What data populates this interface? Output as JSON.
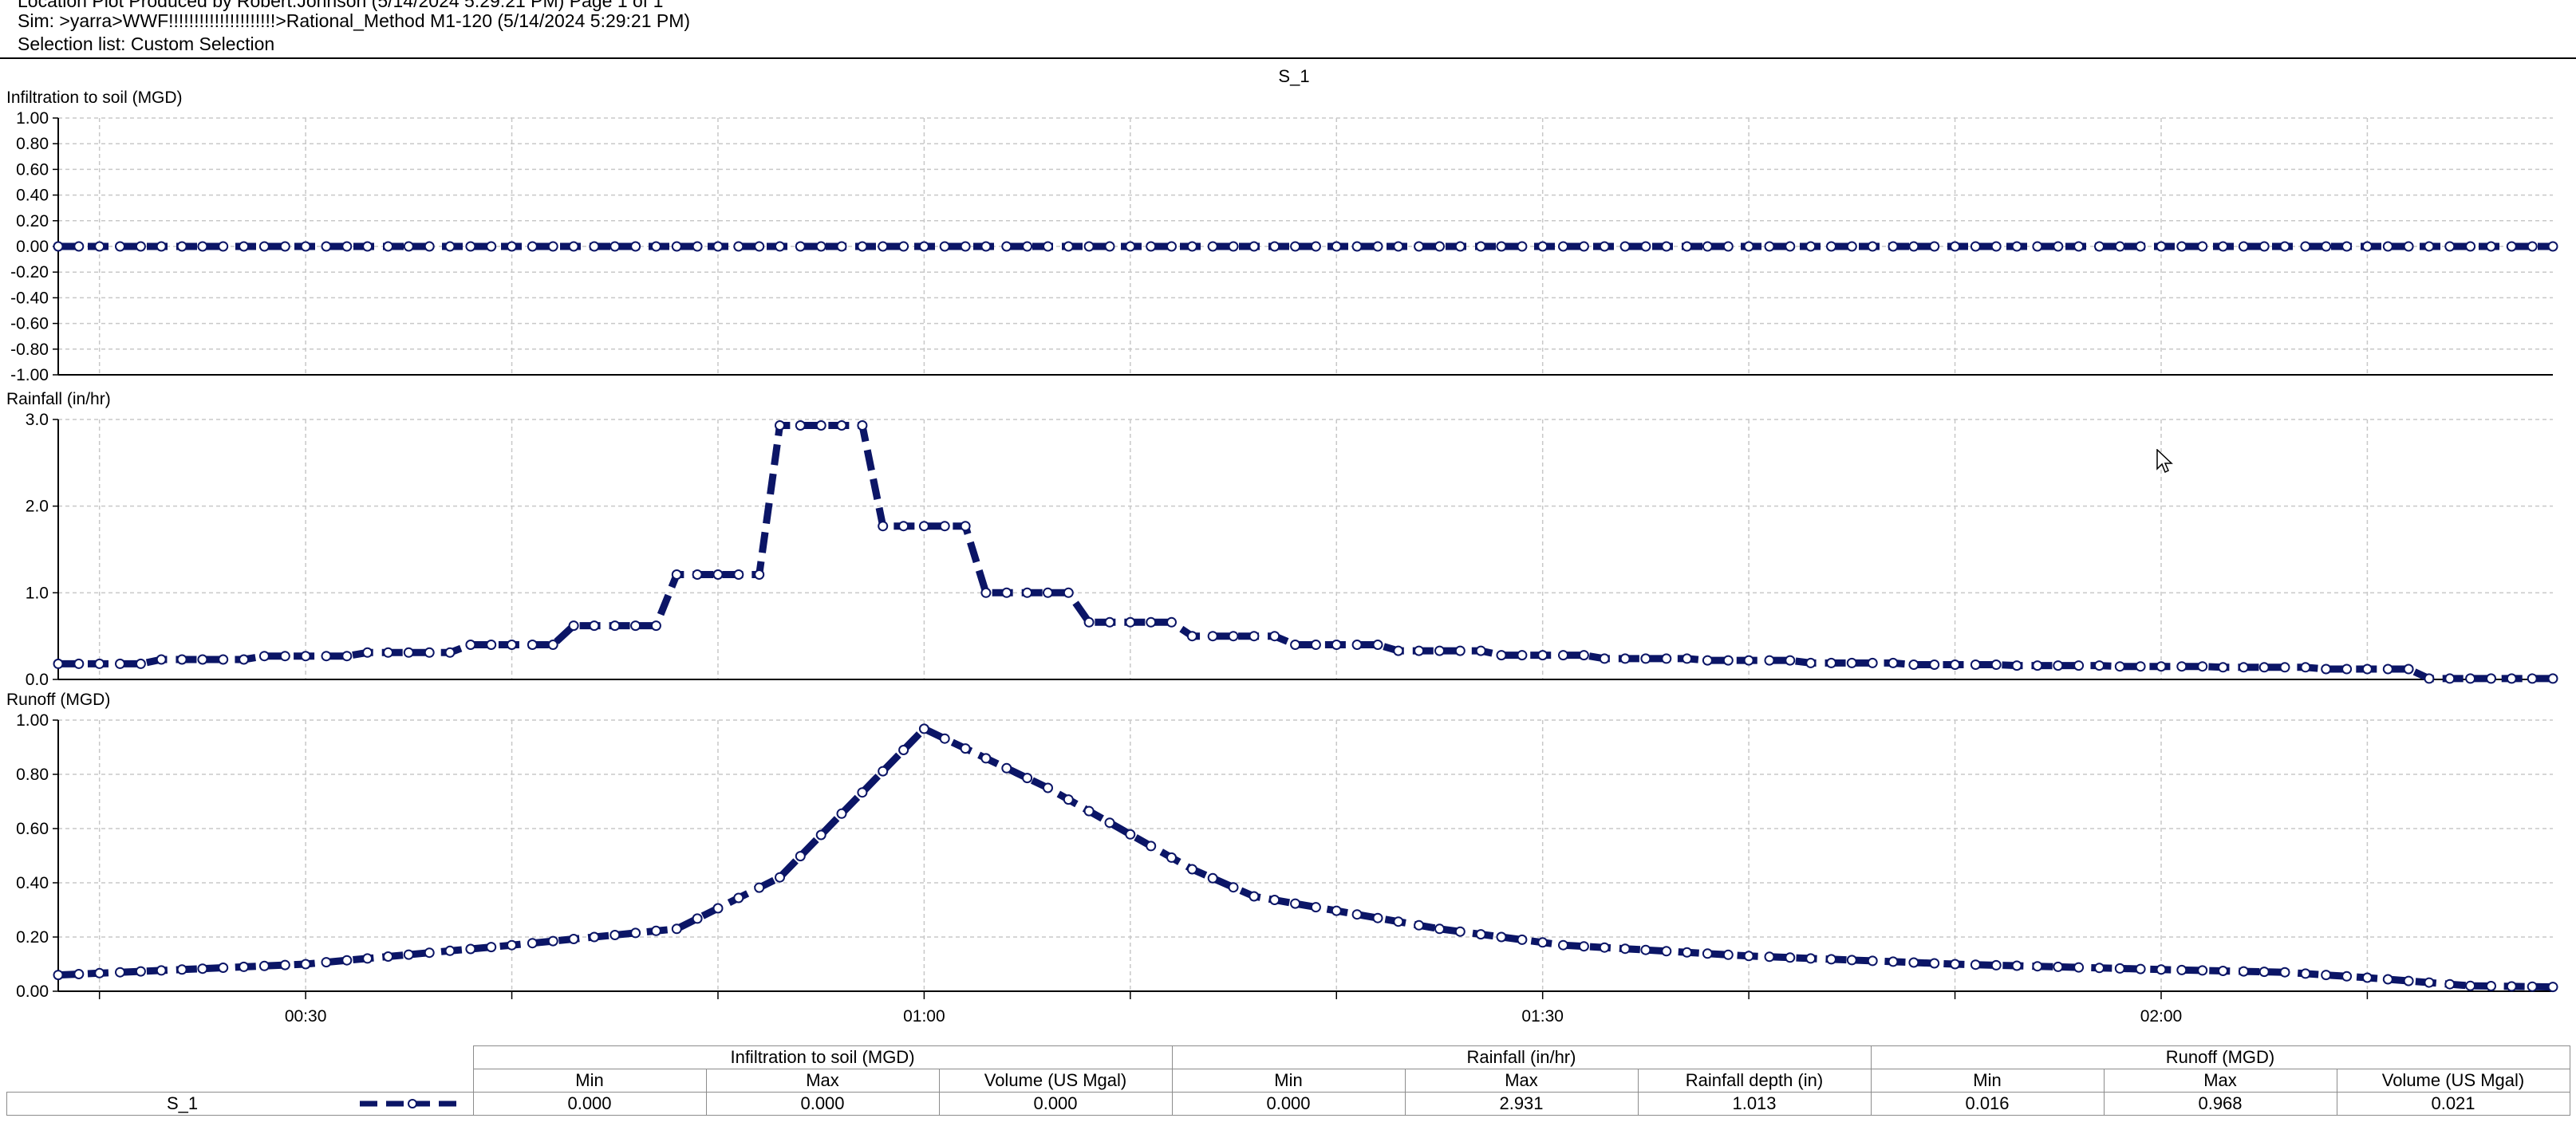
{
  "header": {
    "line1": "Location Plot Produced by Robert.Johnson (5/14/2024 5:29:21 PM) Page 1 of 1",
    "line2": "Sim: >yarra>WWF!!!!!!!!!!!!!!!!!!!!!>Rational_Method M1-120 (5/14/2024 5:29:21 PM)",
    "line3": "Selection list: Custom Selection"
  },
  "colors": {
    "series": "#0b1566",
    "marker_fill": "#ffffff",
    "grid": "#c8c8c8"
  },
  "chart_data": [
    {
      "type": "line",
      "title": "S_1",
      "ylabel": "Infiltration to soil (MGD)",
      "ylim": [
        -1.0,
        1.0
      ],
      "yticks": [
        "1.00",
        "0.80",
        "0.60",
        "0.40",
        "0.20",
        "0.00",
        "-0.20",
        "-0.40",
        "-0.60",
        "-0.80",
        "-1.00"
      ],
      "x_minutes_start": 18,
      "x_minutes_end": 139,
      "step_minutes": 1,
      "series": [
        {
          "constant": 0.0
        }
      ]
    },
    {
      "type": "line",
      "ylabel": "Rainfall (in/hr)",
      "ylim": [
        0,
        3.0
      ],
      "yticks": [
        "3.0",
        "2.0",
        "1.0",
        "0.0"
      ],
      "step_blocks": [
        [
          18,
          0.18
        ],
        [
          23,
          0.23
        ],
        [
          28,
          0.27
        ],
        [
          33,
          0.31
        ],
        [
          38,
          0.4
        ],
        [
          43,
          0.62
        ],
        [
          48,
          1.21
        ],
        [
          53,
          2.931
        ],
        [
          58,
          1.77
        ],
        [
          63,
          1.0
        ],
        [
          68,
          0.66
        ],
        [
          73,
          0.5
        ],
        [
          78,
          0.4
        ],
        [
          83,
          0.33
        ],
        [
          88,
          0.28
        ],
        [
          93,
          0.24
        ],
        [
          98,
          0.22
        ],
        [
          103,
          0.19
        ],
        [
          108,
          0.17
        ],
        [
          113,
          0.16
        ],
        [
          118,
          0.15
        ],
        [
          123,
          0.14
        ],
        [
          128,
          0.12
        ],
        [
          133,
          0.01
        ]
      ]
    },
    {
      "type": "line",
      "ylabel": "Runoff (MGD)",
      "ylim": [
        0,
        1.0
      ],
      "yticks": [
        "1.00",
        "0.80",
        "0.60",
        "0.40",
        "0.20",
        "0.00"
      ],
      "key_points": [
        [
          18,
          0.06
        ],
        [
          30,
          0.1
        ],
        [
          40,
          0.17
        ],
        [
          48,
          0.23
        ],
        [
          53,
          0.42
        ],
        [
          60,
          0.968
        ],
        [
          66,
          0.75
        ],
        [
          73,
          0.45
        ],
        [
          76,
          0.35
        ],
        [
          85,
          0.23
        ],
        [
          91,
          0.17
        ],
        [
          100,
          0.13
        ],
        [
          110,
          0.1
        ],
        [
          120,
          0.08
        ],
        [
          126,
          0.07
        ],
        [
          130,
          0.05
        ],
        [
          135,
          0.02
        ],
        [
          139,
          0.016
        ]
      ]
    }
  ],
  "x_axis": {
    "ticks": [
      {
        "label": "00:30",
        "minute": 30
      },
      {
        "label": "01:00",
        "minute": 60
      },
      {
        "label": "01:30",
        "minute": 90
      },
      {
        "label": "02:00",
        "minute": 120
      }
    ],
    "minor_minutes": [
      20,
      30,
      40,
      50,
      60,
      70,
      80,
      90,
      100,
      110,
      120,
      130
    ]
  },
  "stats": {
    "groups": [
      "Infiltration to soil (MGD)",
      "Rainfall (in/hr)",
      "Runoff (MGD)"
    ],
    "subheaders": [
      "Min",
      "Max",
      "Volume (US Mgal)",
      "Min",
      "Max",
      "Rainfall depth (in)",
      "Min",
      "Max",
      "Volume (US Mgal)"
    ],
    "row": {
      "name": "S_1",
      "values": [
        "0.000",
        "0.000",
        "0.000",
        "0.000",
        "2.931",
        "1.013",
        "0.016",
        "0.968",
        "0.021"
      ]
    }
  }
}
